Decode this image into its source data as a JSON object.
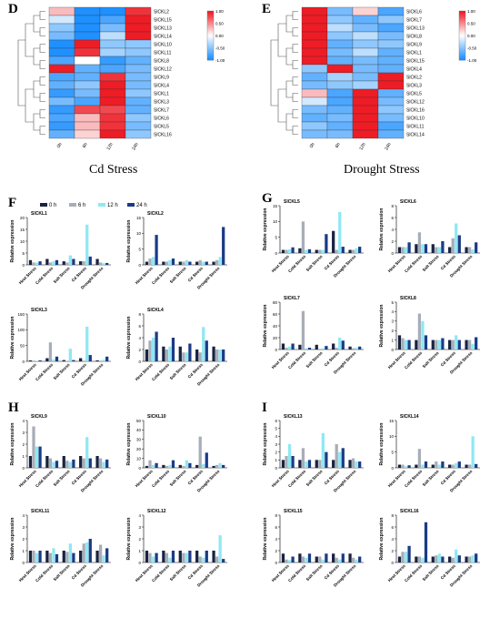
{
  "figure": {
    "panel_letters": [
      "D",
      "E",
      "F",
      "G",
      "H",
      "I"
    ],
    "cd_title": "Cd Stress",
    "drought_title": "Drought Stress",
    "bar_legend": [
      "0 h",
      "6 h",
      "12 h",
      "24 h"
    ],
    "bar_ylabel": "Relative expression",
    "stress_labels": [
      "Heat Stress",
      "Cold Stress",
      "Salt Stress",
      "Cd Stress",
      "Drought Stress"
    ],
    "colors": {
      "series": [
        "#1a2340",
        "#a7aeb8",
        "#8fe8f3",
        "#1b3b86"
      ],
      "heat_low": "#1e90ff",
      "heat_mid": "#ffffff",
      "heat_high": "#ee1c25"
    }
  },
  "chart_data": [
    {
      "panel": "D",
      "type": "heatmap",
      "columns": [
        "0h",
        "6h",
        "12h",
        "24h"
      ],
      "rows": [
        "SlCKL2",
        "SlCKL15",
        "SlCKL13",
        "SlCKL14",
        "SlCKL10",
        "SlCKL11",
        "SlCKL8",
        "SlCKL12",
        "SlCKL9",
        "SlCKL4",
        "SlCKL1",
        "SlCKL3",
        "SlCKL7",
        "SlCKL6",
        "SlCKL5",
        "SlCKL16"
      ],
      "values": [
        [
          0.3,
          -1.0,
          -1.0,
          0.9
        ],
        [
          -0.2,
          -1.0,
          -0.8,
          1.0
        ],
        [
          -0.5,
          -1.0,
          -0.6,
          1.0
        ],
        [
          -0.6,
          -1.0,
          -0.3,
          1.0
        ],
        [
          -1.0,
          1.0,
          -0.5,
          -0.5
        ],
        [
          -1.0,
          0.9,
          -0.4,
          -0.5
        ],
        [
          -0.8,
          0.0,
          -0.9,
          -0.7
        ],
        [
          1.0,
          -0.7,
          -0.8,
          -0.6
        ],
        [
          -0.8,
          -0.7,
          0.9,
          -0.6
        ],
        [
          -0.7,
          -0.5,
          1.0,
          -0.6
        ],
        [
          -0.9,
          -0.6,
          1.0,
          -0.5
        ],
        [
          -0.6,
          -0.8,
          1.0,
          -0.7
        ],
        [
          -0.9,
          0.8,
          0.8,
          -0.7
        ],
        [
          -0.8,
          0.3,
          0.9,
          -0.5
        ],
        [
          -0.9,
          0.3,
          0.9,
          -0.6
        ],
        [
          -0.7,
          0.2,
          1.0,
          -0.5
        ]
      ],
      "scale_ticks": [
        "1.00",
        "0.50",
        "0.00",
        "-0.50",
        "-1.00"
      ],
      "range": [
        -1,
        1
      ]
    },
    {
      "panel": "E",
      "type": "heatmap",
      "columns": [
        "0h",
        "6h",
        "12h",
        "24h"
      ],
      "rows": [
        "SlCKL6",
        "SlCKL7",
        "SlCKL13",
        "SlCKL8",
        "SlCKL9",
        "SlCKL1",
        "SlCKL15",
        "SlCKL4",
        "SlCKL2",
        "SlCKL3",
        "SlCKL5",
        "SlCKL12",
        "SlCKL16",
        "SlCKL10",
        "SlCKL11",
        "SlCKL14"
      ],
      "values": [
        [
          1.0,
          -0.6,
          0.2,
          -0.8
        ],
        [
          1.0,
          -0.5,
          -0.7,
          -0.5
        ],
        [
          1.0,
          -0.3,
          -0.6,
          -0.8
        ],
        [
          1.0,
          -0.5,
          -0.3,
          -0.6
        ],
        [
          1.0,
          -0.7,
          -0.5,
          -0.5
        ],
        [
          1.0,
          -0.6,
          -0.3,
          -0.7
        ],
        [
          1.0,
          -0.7,
          -0.6,
          -0.7
        ],
        [
          -0.5,
          1.0,
          -0.6,
          -0.7
        ],
        [
          -0.7,
          -0.4,
          -0.6,
          1.0
        ],
        [
          -0.6,
          -0.5,
          -0.4,
          1.0
        ],
        [
          0.3,
          -0.8,
          1.0,
          -0.7
        ],
        [
          -0.2,
          -0.8,
          1.0,
          -0.6
        ],
        [
          -0.6,
          -0.7,
          1.0,
          -0.5
        ],
        [
          -0.7,
          -0.6,
          1.0,
          -0.6
        ],
        [
          -0.5,
          -0.7,
          1.0,
          -0.8
        ],
        [
          -0.6,
          -0.6,
          1.0,
          -0.7
        ]
      ],
      "scale_ticks": [
        "1.00",
        "0.50",
        "0.00",
        "-0.50",
        "-1.00"
      ],
      "range": [
        -1,
        1
      ]
    },
    {
      "panel": "F",
      "type": "bar",
      "title": "SlCKL1",
      "ylim": [
        0,
        20
      ],
      "yticks": [
        0,
        5,
        10,
        15,
        20
      ],
      "series": [
        [
          2,
          2.5,
          1.5,
          1.5,
          2.5
        ],
        [
          1,
          1,
          1,
          1.5,
          1
        ],
        [
          1,
          1.5,
          4,
          17,
          0.7
        ],
        [
          1.5,
          2,
          2.5,
          3.5,
          0.8
        ]
      ]
    },
    {
      "panel": "F",
      "type": "bar",
      "title": "SlCKL2",
      "ylim": [
        0,
        15
      ],
      "yticks": [
        0,
        5,
        10,
        15
      ],
      "series": [
        [
          1,
          1,
          1,
          1,
          1
        ],
        [
          2,
          1,
          1,
          1.5,
          1.5
        ],
        [
          2.5,
          1.5,
          1.5,
          1,
          2.5
        ],
        [
          9.5,
          2,
          1,
          1,
          12
        ]
      ]
    },
    {
      "panel": "F",
      "type": "bar",
      "title": "SlCKL3",
      "ylim": [
        0,
        150
      ],
      "yticks": [
        0,
        50,
        100,
        150
      ],
      "series": [
        [
          3,
          10,
          4,
          10,
          3
        ],
        [
          2,
          60,
          1,
          2,
          2
        ],
        [
          2,
          6,
          40,
          110,
          5
        ],
        [
          3,
          15,
          4,
          20,
          15
        ]
      ]
    },
    {
      "panel": "F",
      "type": "bar",
      "title": "SlCKL4",
      "ylim": [
        0,
        8
      ],
      "yticks": [
        0,
        2,
        4,
        6,
        8
      ],
      "series": [
        [
          2,
          2.5,
          2.5,
          2,
          2.5
        ],
        [
          3.5,
          2,
          1.5,
          1.5,
          2
        ],
        [
          4,
          2.5,
          1.5,
          5.8,
          2
        ],
        [
          5,
          4,
          3,
          3.5,
          2
        ]
      ]
    },
    {
      "panel": "G",
      "type": "bar",
      "title": "SlCKL5",
      "ylim": [
        0,
        15
      ],
      "yticks": [
        0,
        5,
        10,
        15
      ],
      "series": [
        [
          1,
          1.5,
          1,
          7,
          1
        ],
        [
          1,
          10,
          1,
          1,
          1
        ],
        [
          1.2,
          1,
          1,
          13,
          1.5
        ],
        [
          1.8,
          1.2,
          6,
          2,
          2
        ]
      ]
    },
    {
      "panel": "G",
      "type": "bar",
      "title": "SlCKL6",
      "ylim": [
        0,
        8
      ],
      "yticks": [
        0,
        2,
        4,
        6,
        8
      ],
      "series": [
        [
          1,
          1.5,
          1.5,
          1,
          1
        ],
        [
          1,
          3.5,
          1,
          2.5,
          1
        ],
        [
          1,
          1.5,
          1,
          5,
          0.6
        ],
        [
          1.8,
          1.5,
          2,
          3,
          1.8
        ]
      ]
    },
    {
      "panel": "G",
      "type": "bar",
      "title": "SlCKL7",
      "ylim": [
        0,
        80
      ],
      "yticks": [
        0,
        20,
        40,
        60,
        80
      ],
      "series": [
        [
          10,
          8,
          8,
          10,
          5
        ],
        [
          3,
          65,
          1,
          3,
          2
        ],
        [
          5,
          2,
          2,
          20,
          3
        ],
        [
          10,
          3,
          6,
          15,
          5
        ]
      ]
    },
    {
      "panel": "G",
      "type": "bar",
      "title": "SlCKL8",
      "ylim": [
        0,
        5
      ],
      "yticks": [
        0,
        1,
        2,
        3,
        4,
        5
      ],
      "series": [
        [
          1.5,
          1,
          1,
          1,
          1
        ],
        [
          1.2,
          3.8,
          1,
          1,
          1
        ],
        [
          1,
          3,
          1,
          1.5,
          0.6
        ],
        [
          1,
          1.5,
          1.2,
          1,
          1.3
        ]
      ]
    },
    {
      "panel": "H",
      "type": "bar",
      "title": "SlCKL9",
      "ylim": [
        0,
        4
      ],
      "yticks": [
        0,
        1,
        2,
        3,
        4
      ],
      "series": [
        [
          1,
          1,
          1,
          1,
          1
        ],
        [
          3.5,
          0.8,
          0.6,
          0.8,
          0.8
        ],
        [
          1.8,
          0.5,
          0.5,
          2.6,
          0.5
        ],
        [
          1.8,
          0.6,
          0.7,
          0.8,
          0.7
        ]
      ]
    },
    {
      "panel": "H",
      "type": "bar",
      "title": "SlCKL10",
      "ylim": [
        0,
        50
      ],
      "yticks": [
        0,
        10,
        20,
        30,
        40,
        50
      ],
      "series": [
        [
          2,
          3,
          3,
          3,
          2
        ],
        [
          8,
          2,
          2,
          33,
          3
        ],
        [
          3,
          3,
          8,
          4,
          5
        ],
        [
          5,
          8,
          5,
          16,
          3
        ]
      ]
    },
    {
      "panel": "H",
      "type": "bar",
      "title": "SlCKL11",
      "ylim": [
        0,
        4
      ],
      "yticks": [
        0,
        1,
        2,
        3,
        4
      ],
      "series": [
        [
          1,
          1,
          1,
          1,
          1
        ],
        [
          1,
          0.8,
          0.9,
          1.6,
          1.5
        ],
        [
          0.8,
          1.2,
          1.6,
          1.7,
          0.6
        ],
        [
          1,
          0.7,
          0.8,
          2,
          1.2
        ]
      ]
    },
    {
      "panel": "H",
      "type": "bar",
      "title": "SlCKL12",
      "ylim": [
        0,
        4
      ],
      "yticks": [
        0,
        1,
        2,
        3,
        4
      ],
      "series": [
        [
          1,
          1,
          1,
          1,
          1
        ],
        [
          0.8,
          0.8,
          0.8,
          0.5,
          0.5
        ],
        [
          0.5,
          0.4,
          0.8,
          0.4,
          2.3
        ],
        [
          0.8,
          1,
          1,
          1,
          0.3
        ]
      ]
    },
    {
      "panel": "I",
      "type": "bar",
      "title": "SlCKL13",
      "ylim": [
        0,
        6
      ],
      "yticks": [
        0,
        1,
        2,
        3,
        4,
        5,
        6
      ],
      "series": [
        [
          1,
          1,
          1,
          1,
          1
        ],
        [
          1.5,
          2.5,
          1,
          3,
          1.2
        ],
        [
          3,
          0.8,
          4.4,
          2,
          0.8
        ],
        [
          1.5,
          1,
          2,
          2.5,
          0.8
        ]
      ]
    },
    {
      "panel": "I",
      "type": "bar",
      "title": "SlCKL14",
      "ylim": [
        0,
        15
      ],
      "yticks": [
        0,
        5,
        10,
        15
      ],
      "series": [
        [
          1,
          1,
          1,
          1,
          1
        ],
        [
          1,
          6,
          2,
          1,
          1
        ],
        [
          0.5,
          1,
          1,
          1.5,
          10
        ],
        [
          0.8,
          2,
          2,
          2,
          1.2
        ]
      ]
    },
    {
      "panel": "I",
      "type": "bar",
      "title": "SlCKL15",
      "ylim": [
        0,
        8
      ],
      "yticks": [
        0,
        2,
        4,
        6,
        8
      ],
      "series": [
        [
          1.5,
          1.5,
          1,
          1.5,
          1.5
        ],
        [
          0.5,
          1,
          1,
          0.8,
          0.8
        ],
        [
          0.4,
          0.8,
          0.5,
          0.5,
          0.5
        ],
        [
          1,
          1.5,
          1.5,
          1.5,
          1
        ]
      ]
    },
    {
      "panel": "I",
      "type": "bar",
      "title": "SlCKL16",
      "ylim": [
        0,
        8
      ],
      "yticks": [
        0,
        2,
        4,
        6,
        8
      ],
      "series": [
        [
          1,
          1,
          1,
          1,
          1
        ],
        [
          1.8,
          1,
          1.2,
          0.8,
          1
        ],
        [
          1.8,
          0.8,
          1.5,
          2.2,
          1.2
        ],
        [
          2.8,
          6.8,
          1,
          1.2,
          1.5
        ]
      ]
    }
  ]
}
